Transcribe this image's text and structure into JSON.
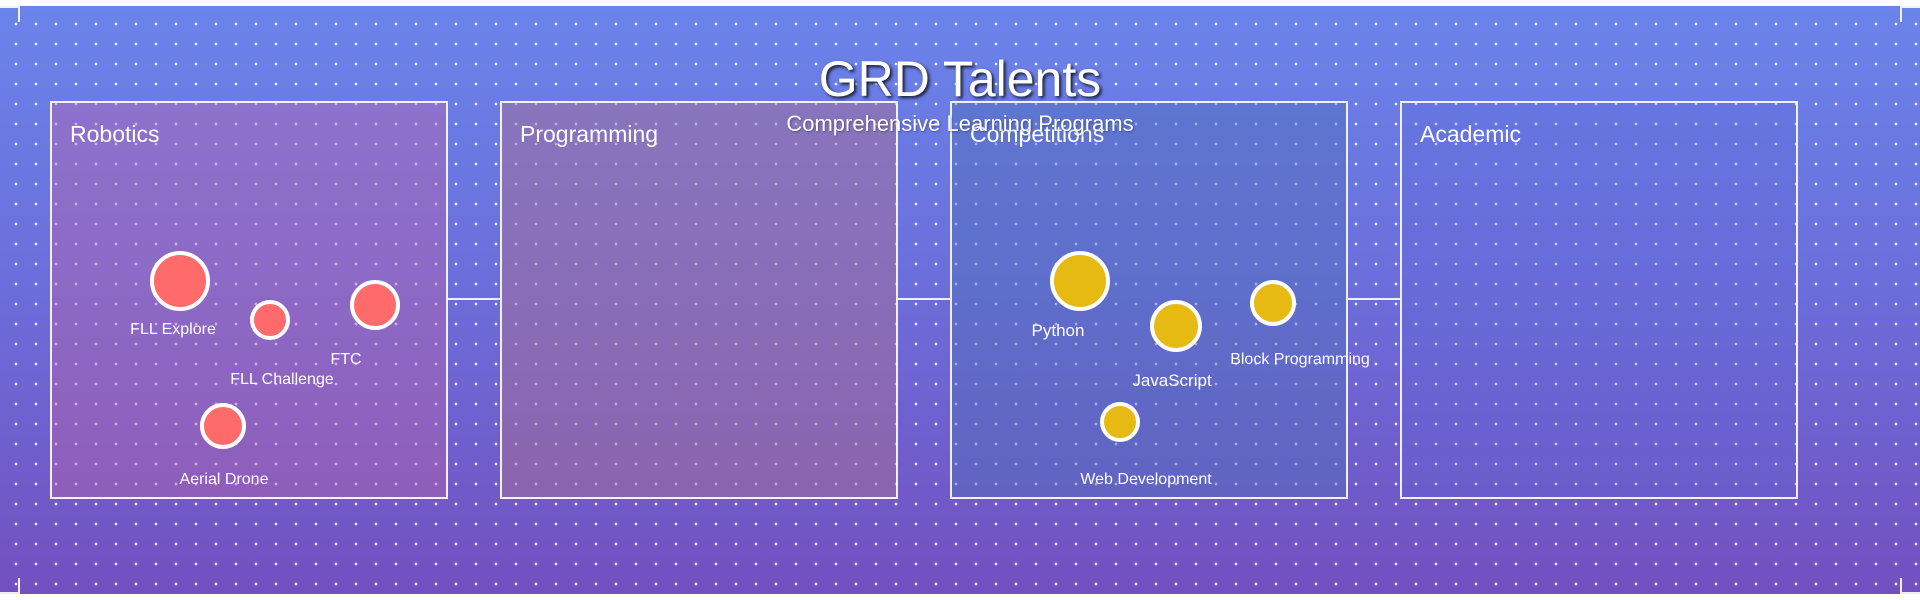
{
  "title": "GRD Talents",
  "subtitle": "Comprehensive Learning Programs",
  "panels": [
    {
      "title": "Robotics"
    },
    {
      "title": "Programming"
    },
    {
      "title": "Competitions"
    },
    {
      "title": "Academic"
    }
  ],
  "robotics_items": [
    {
      "label": "FLL Explore",
      "color": "#ff6b6b"
    },
    {
      "label": "FLL Challenge",
      "color": "#ff6b6b"
    },
    {
      "label": "FTC",
      "color": "#ff6b6b"
    },
    {
      "label": "Aerial Drone",
      "color": "#ff6b6b"
    }
  ],
  "programming_items": [
    {
      "label": "Python",
      "color": "#e6b913"
    },
    {
      "label": "JavaScript",
      "color": "#e6b913"
    },
    {
      "label": "Block Programming",
      "color": "#e6b913"
    },
    {
      "label": "Web Development",
      "color": "#e6b913"
    }
  ]
}
